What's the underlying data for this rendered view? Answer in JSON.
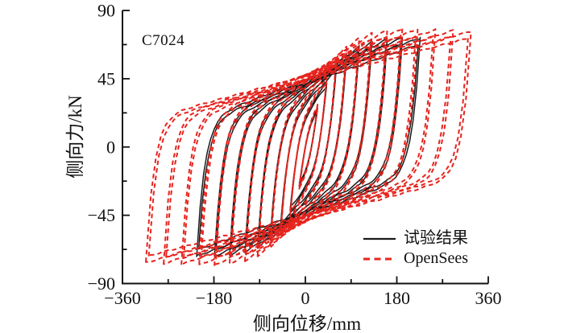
{
  "figure": {
    "specimen_label": "C7024"
  },
  "legend": {
    "items": [
      {
        "label": "试验结果",
        "color": "#1a1a1a",
        "style": "solid"
      },
      {
        "label": "OpenSees",
        "color": "#e6241e",
        "style": "dashed"
      }
    ]
  },
  "chart_data": {
    "type": "line",
    "subtype": "cyclic-hysteresis-loops",
    "title": "",
    "xlabel": "侧向位移/mm",
    "ylabel": "侧向力/kN",
    "xlim": [
      -360,
      360
    ],
    "ylim": [
      -90,
      90
    ],
    "x_major_ticks": [
      -360,
      -180,
      0,
      180,
      360
    ],
    "x_major_tick_labels": [
      "−360",
      "−180",
      "0",
      "180",
      "360"
    ],
    "x_minor_ticks": [
      -270,
      -90,
      90,
      270
    ],
    "y_major_ticks": [
      -90,
      -45,
      0,
      45,
      90
    ],
    "y_major_tick_labels": [
      "−90",
      "−45",
      "0",
      "45",
      "90"
    ],
    "y_minor_ticks": [
      -67.5,
      -22.5,
      22.5,
      67.5
    ],
    "grid": false,
    "legend_position": "lower-right",
    "annotations": [
      {
        "text": "C7024",
        "x_mm": -322,
        "y_kN": 72
      }
    ],
    "series": [
      {
        "name": "试验结果",
        "color": "#1a1a1a",
        "line_style": "solid",
        "line_width": 1.5,
        "cycle_amplitudes_mm": [
          18,
          36,
          55,
          75,
          100,
          125,
          155,
          185,
          220
        ],
        "cycles_per_amplitude": 2,
        "peak_displacement_mm": 220,
        "peak_force_kN": 72,
        "f_max": 73,
        "rise_tau_mm": 42,
        "degrade_per_mm": 0.00025,
        "pinch_offset_mm": 6
      },
      {
        "name": "OpenSees",
        "color": "#e6241e",
        "line_style": "dashed",
        "line_width": 2,
        "cycle_amplitudes_mm": [
          18,
          36,
          55,
          75,
          100,
          125,
          155,
          185,
          215,
          250,
          285,
          320
        ],
        "cycles_per_amplitude": 2,
        "peak_displacement_mm": 320,
        "peak_force_kN": 76,
        "f_max": 79,
        "rise_tau_mm": 42,
        "degrade_per_mm": 0.00025,
        "pinch_offset_mm": 6
      }
    ]
  }
}
